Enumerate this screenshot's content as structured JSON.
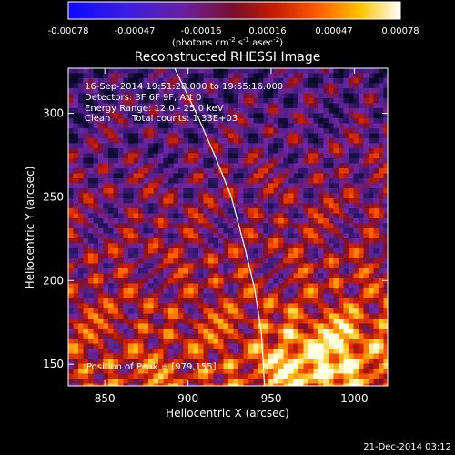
{
  "chart_data": {
    "type": "heatmap",
    "title": "Reconstructed RHESSI Image",
    "xlabel": "Heliocentric X (arcsec)",
    "ylabel": "Heliocentric Y (arcsec)",
    "xlim": [
      828,
      1020
    ],
    "ylim": [
      137,
      327
    ],
    "x_ticks": [
      850,
      900,
      950,
      1000
    ],
    "y_ticks": [
      150,
      200,
      250,
      300
    ],
    "colorbar": {
      "ticks": [
        "-0.00078",
        "-0.00047",
        "-0.00016",
        "0.00016",
        "0.00047",
        "0.00078"
      ],
      "range": [
        -0.00078,
        0.00078
      ],
      "units_text": "(photons cm",
      "units_exp1": "-2",
      "units_mid": " s",
      "units_exp2": "-1",
      "units_mid2": " asec",
      "units_exp3": "-2",
      "units_end": ")",
      "colormap": "blue-purple-red-orange-yellow-white"
    },
    "annotations": {
      "time_range": "16-Sep-2014 19:51:28.000 to 19:55:16.000",
      "detectors": "Detectors: 3F 6F 9F, Att 0",
      "energy": "Energy Range: 12.0 - 25.0 keV",
      "clean": "Clean",
      "total_counts": "Total counts: 1.33E+03",
      "peak": "Position of Peak = [979,155]"
    },
    "peak": {
      "x": 979,
      "y": 155
    },
    "limb_curve": [
      [
        892,
        327
      ],
      [
        905,
        300
      ],
      [
        916,
        275
      ],
      [
        926,
        250
      ],
      [
        934,
        220
      ],
      [
        940,
        195
      ],
      [
        944,
        170
      ],
      [
        946,
        137
      ]
    ]
  },
  "footer": {
    "timestamp": "21-Dec-2014 03:12"
  }
}
